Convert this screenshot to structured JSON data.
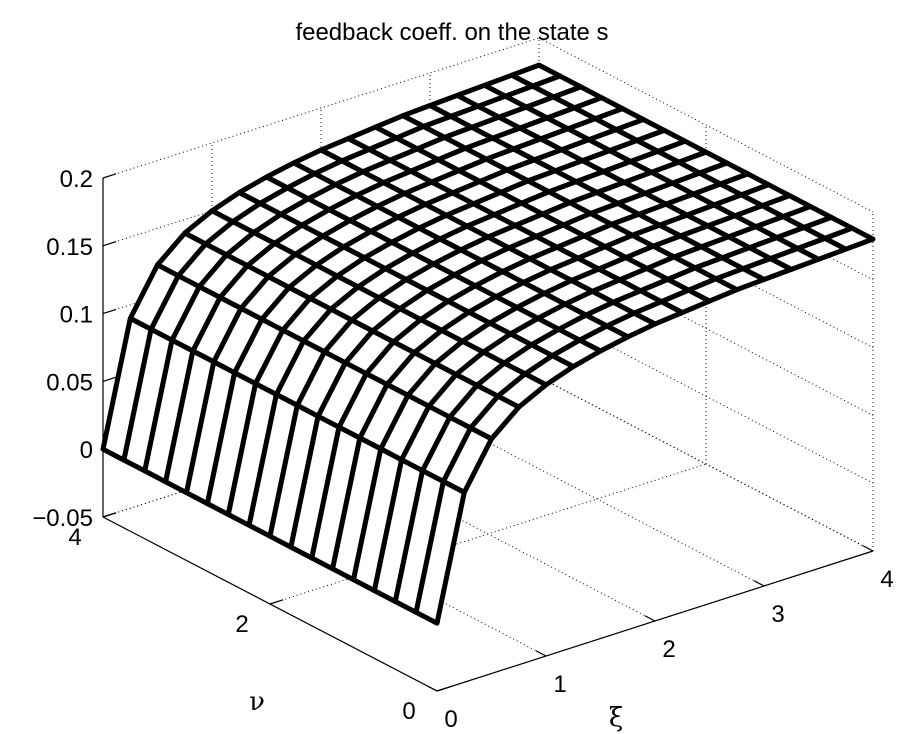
{
  "chart_data": {
    "type": "surface",
    "title": "feedback coeff. on the state s",
    "xlabel": "ξ",
    "ylabel": "ν",
    "zlabel": "",
    "xlim": [
      0,
      4
    ],
    "ylim": [
      0,
      4
    ],
    "zlim": [
      -0.05,
      0.2
    ],
    "x_ticks": [
      "0",
      "1",
      "2",
      "3",
      "4"
    ],
    "y_ticks": [
      "0",
      "2",
      "4"
    ],
    "z_ticks": [
      "−0.05",
      "0",
      "0.05",
      "0.1",
      "0.15",
      "0.2"
    ],
    "z_tick_values": [
      -0.05,
      0,
      0.05,
      0.1,
      0.15,
      0.2
    ],
    "grid": true,
    "mesh_color": "#000000",
    "face_color": "#ffffff",
    "xi": [
      0.0,
      0.25,
      0.5,
      0.75,
      1.0,
      1.25,
      1.5,
      1.75,
      2.0,
      2.25,
      2.5,
      2.75,
      3.0,
      3.25,
      3.5,
      3.75,
      4.0
    ],
    "nu": [
      0.0,
      0.25,
      0.5,
      0.75,
      1.0,
      1.25,
      1.5,
      1.75,
      2.0,
      2.25,
      2.5,
      2.75,
      3.0,
      3.25,
      3.5,
      3.75,
      4.0
    ],
    "z_profile_over_xi": [
      0.0,
      0.09,
      0.123,
      0.14,
      0.15,
      0.157,
      0.162,
      0.166,
      0.169,
      0.171,
      0.173,
      0.175,
      0.176,
      0.177,
      0.178,
      0.179,
      0.18
    ],
    "z_depends_on_nu": false
  }
}
